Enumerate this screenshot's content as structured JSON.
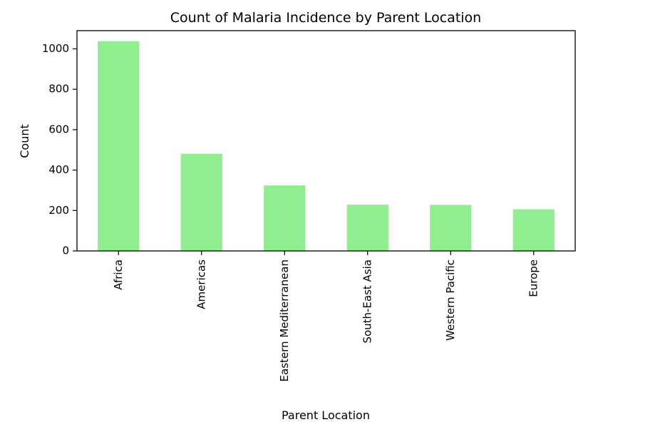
{
  "chart_data": {
    "type": "bar",
    "title": "Count of Malaria Incidence by Parent Location",
    "xlabel": "Parent Location",
    "ylabel": "Count",
    "categories": [
      "Africa",
      "Americas",
      "Eastern Mediterranean",
      "South-East Asia",
      "Western Pacific",
      "Europe"
    ],
    "values": [
      1038,
      481,
      324,
      229,
      228,
      206
    ],
    "ylim": [
      0,
      1090
    ],
    "yticks": [
      0,
      200,
      400,
      600,
      800,
      1000
    ],
    "bar_color": "#90ee90",
    "grid": false,
    "legend": "none"
  }
}
